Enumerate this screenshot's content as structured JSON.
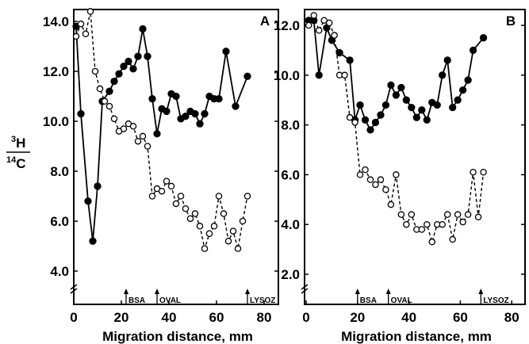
{
  "chart_data": [
    {
      "panel": "A",
      "type": "line",
      "xlabel": "Migration distance, mm",
      "ylabel": {
        "top_mass": "3",
        "top_elem": "H",
        "bottom_mass": "14",
        "bottom_elem": "C"
      },
      "xlim": [
        0,
        84
      ],
      "ylim": [
        3.4,
        14.6
      ],
      "x_ticks": [
        "0",
        "20",
        "40",
        "60",
        "80"
      ],
      "x_tick_values": [
        0,
        20,
        40,
        60,
        80
      ],
      "y_ticks": [
        "4.0",
        "6.0",
        "8.0",
        "10.0",
        "12.0",
        "14.0"
      ],
      "y_tick_values": [
        4,
        6,
        8,
        10,
        12,
        14
      ],
      "markers": [
        {
          "label": "BSA",
          "x": 22
        },
        {
          "label": "OVAL",
          "x": 35
        },
        {
          "label": "LYSOZ",
          "x": 73
        }
      ],
      "series": [
        {
          "style": "solid-filled",
          "x": [
            1,
            3,
            6,
            8,
            10,
            12,
            15,
            17,
            19,
            21,
            23,
            25,
            27,
            29,
            31,
            33,
            35,
            37,
            39,
            41,
            43,
            45,
            47,
            49,
            51,
            53,
            55,
            57,
            59,
            61,
            64,
            68,
            73
          ],
          "y": [
            13.8,
            10.3,
            6.8,
            5.2,
            7.4,
            10.8,
            11.2,
            11.6,
            11.9,
            12.2,
            12.4,
            12.1,
            12.6,
            13.7,
            12.6,
            10.9,
            9.5,
            10.5,
            10.4,
            11.1,
            11.0,
            10.1,
            10.2,
            10.4,
            10.3,
            9.9,
            10.3,
            11.0,
            10.9,
            10.9,
            12.8,
            10.6,
            11.8
          ]
        },
        {
          "style": "dashed-open",
          "x": [
            1,
            3,
            5,
            7,
            9,
            11,
            13,
            15,
            17,
            19,
            21,
            23,
            25,
            27,
            29,
            31,
            33,
            35,
            37,
            39,
            41,
            43,
            45,
            47,
            49,
            51,
            53,
            55,
            57,
            59,
            61,
            63,
            65,
            67,
            69,
            71,
            73
          ],
          "y": [
            13.4,
            13.9,
            13.5,
            14.4,
            12.0,
            11.3,
            10.8,
            10.6,
            10.1,
            9.6,
            9.7,
            9.9,
            9.8,
            9.2,
            9.4,
            9.0,
            7.0,
            7.3,
            7.2,
            7.6,
            7.4,
            6.7,
            7.0,
            6.5,
            6.1,
            6.3,
            5.8,
            4.9,
            5.5,
            5.8,
            7.0,
            6.3,
            5.2,
            5.6,
            4.9,
            6.0,
            7.0
          ]
        }
      ]
    },
    {
      "panel": "B",
      "type": "line",
      "xlabel": "Migration distance, mm",
      "xlim": [
        0,
        82
      ],
      "ylim": [
        1.6,
        12.6
      ],
      "x_ticks": [
        "0",
        "20",
        "40",
        "60",
        "80"
      ],
      "x_tick_values": [
        0,
        20,
        40,
        60,
        80
      ],
      "y_ticks": [
        "2.0",
        "4.0",
        "6.0",
        "8.0",
        "10.0",
        "12.0"
      ],
      "y_tick_values": [
        2,
        4,
        6,
        8,
        10,
        12
      ],
      "markers": [
        {
          "label": "BSA",
          "x": 20
        },
        {
          "label": "OVAL",
          "x": 32
        },
        {
          "label": "LYSOZ",
          "x": 68
        }
      ],
      "series": [
        {
          "style": "solid-filled",
          "x": [
            1,
            3,
            5,
            8,
            10,
            13,
            17,
            19,
            21,
            23,
            25,
            27,
            29,
            31,
            33,
            35,
            37,
            39,
            41,
            43,
            45,
            47,
            49,
            51,
            53,
            55,
            57,
            59,
            61,
            63,
            65,
            69
          ],
          "y": [
            12.2,
            12.2,
            10.0,
            11.9,
            11.4,
            10.9,
            10.6,
            8.2,
            8.8,
            8.2,
            7.8,
            8.1,
            8.4,
            8.8,
            9.6,
            9.2,
            9.5,
            9.0,
            8.7,
            8.3,
            8.6,
            8.2,
            8.9,
            8.8,
            10.0,
            10.6,
            8.7,
            9.0,
            9.4,
            9.8,
            11.0,
            11.5
          ]
        },
        {
          "style": "dashed-open",
          "x": [
            1,
            3,
            5,
            7,
            9,
            11,
            13,
            15,
            17,
            19,
            21,
            23,
            25,
            27,
            29,
            31,
            33,
            35,
            37,
            39,
            41,
            43,
            45,
            47,
            49,
            51,
            53,
            55,
            57,
            59,
            61,
            63,
            65,
            67,
            69
          ],
          "y": [
            12.0,
            12.4,
            11.8,
            12.2,
            12.1,
            11.6,
            10.0,
            10.0,
            8.3,
            8.1,
            6.0,
            6.2,
            5.8,
            5.6,
            5.8,
            5.4,
            4.8,
            6.0,
            4.4,
            4.0,
            4.4,
            3.8,
            3.8,
            4.0,
            3.3,
            4.0,
            4.0,
            4.4,
            3.4,
            4.4,
            4.1,
            4.4,
            6.1,
            4.3,
            6.1
          ]
        }
      ]
    }
  ]
}
